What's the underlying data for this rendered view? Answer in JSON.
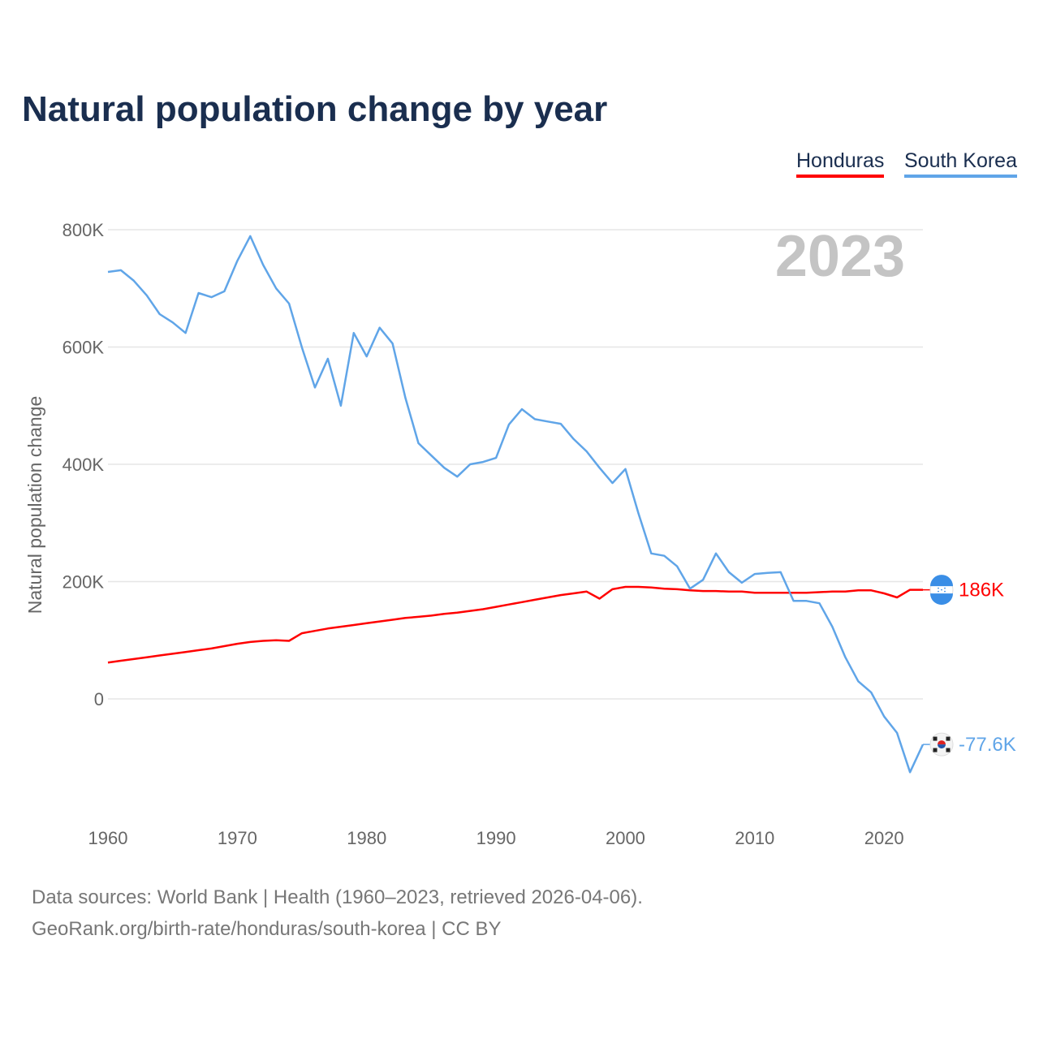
{
  "chart_data": {
    "type": "line",
    "title": "Natural population change by year",
    "xlabel": "",
    "ylabel": "Natural population change",
    "xlim": [
      1960,
      2023
    ],
    "ylim": [
      -160000,
      800000
    ],
    "yticks": [
      0,
      200000,
      400000,
      600000,
      800000
    ],
    "ytick_labels": [
      "0",
      "200K",
      "400K",
      "600K",
      "800K"
    ],
    "xticks": [
      1960,
      1970,
      1980,
      1990,
      2000,
      2010,
      2020
    ],
    "xtick_labels": [
      "1960",
      "1970",
      "1980",
      "1990",
      "2000",
      "2010",
      "2020"
    ],
    "grid": true,
    "legend_placement": "top-right",
    "year_annotation": "2023",
    "x": [
      1960,
      1961,
      1962,
      1963,
      1964,
      1965,
      1966,
      1967,
      1968,
      1969,
      1970,
      1971,
      1972,
      1973,
      1974,
      1975,
      1976,
      1977,
      1978,
      1979,
      1980,
      1981,
      1982,
      1983,
      1984,
      1985,
      1986,
      1987,
      1988,
      1989,
      1990,
      1991,
      1992,
      1993,
      1994,
      1995,
      1996,
      1997,
      1998,
      1999,
      2000,
      2001,
      2002,
      2003,
      2004,
      2005,
      2006,
      2007,
      2008,
      2009,
      2010,
      2011,
      2012,
      2013,
      2014,
      2015,
      2016,
      2017,
      2018,
      2019,
      2020,
      2021,
      2022,
      2023
    ],
    "series": [
      {
        "name": "Honduras",
        "color": "#ff0000",
        "end_label": "186K",
        "values": [
          62000,
          65000,
          68000,
          71000,
          74000,
          77000,
          80000,
          83000,
          86000,
          90000,
          94000,
          97000,
          99000,
          100000,
          99000,
          112000,
          116000,
          120000,
          123000,
          126000,
          129000,
          132000,
          135000,
          138000,
          140000,
          142000,
          145000,
          147000,
          150000,
          153000,
          157000,
          161000,
          165000,
          169000,
          173000,
          177000,
          180000,
          183000,
          171000,
          187000,
          191000,
          191000,
          190000,
          188000,
          187000,
          185000,
          184000,
          184000,
          183000,
          183000,
          181000,
          181000,
          181000,
          181000,
          181000,
          182000,
          183000,
          183000,
          185000,
          185000,
          180000,
          173000,
          186000,
          186000
        ]
      },
      {
        "name": "South Korea",
        "color": "#60a5e8",
        "end_label": "-77.6K",
        "values": [
          728000,
          731000,
          713000,
          688000,
          656000,
          642000,
          624000,
          692000,
          685000,
          695000,
          747000,
          789000,
          740000,
          700000,
          674000,
          599000,
          531000,
          580000,
          500000,
          624000,
          584000,
          633000,
          606000,
          513000,
          436000,
          415000,
          394000,
          379000,
          400000,
          404000,
          411000,
          468000,
          494000,
          477000,
          473000,
          469000,
          443000,
          422000,
          394000,
          368000,
          392000,
          317000,
          248000,
          244000,
          226000,
          188000,
          203000,
          248000,
          216000,
          198000,
          213000,
          215000,
          216000,
          167000,
          167000,
          163000,
          123000,
          71000,
          30000,
          11000,
          -30000,
          -58000,
          -125000,
          -77600
        ]
      }
    ]
  },
  "legend": {
    "honduras": "Honduras",
    "south_korea": "South Korea"
  },
  "footer": {
    "source": "Data sources: World Bank | Health (1960–2023, retrieved 2026-04-06).",
    "credit": "GeoRank.org/birth-rate/honduras/south-korea | CC BY"
  }
}
